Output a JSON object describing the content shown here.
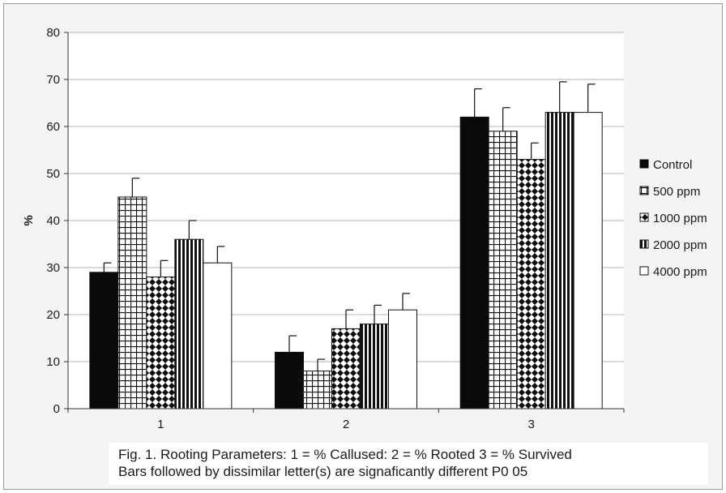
{
  "chart_data": {
    "type": "bar",
    "categories": [
      "1",
      "2",
      "3"
    ],
    "ylabel": "%",
    "ylim": [
      0,
      80
    ],
    "yticks": [
      0,
      10,
      20,
      30,
      40,
      50,
      60,
      70,
      80
    ],
    "grid": true,
    "legend_position": "right",
    "series": [
      {
        "name": "Control",
        "values": [
          29,
          12,
          62
        ],
        "errors": [
          2,
          3.5,
          6
        ],
        "pattern": "solid"
      },
      {
        "name": "500 ppm",
        "values": [
          45,
          8,
          59
        ],
        "errors": [
          4,
          2.5,
          5
        ],
        "pattern": "grid"
      },
      {
        "name": "1000 ppm",
        "values": [
          28,
          17,
          53
        ],
        "errors": [
          3.5,
          4,
          3.5
        ],
        "pattern": "diamonds"
      },
      {
        "name": "2000 ppm",
        "values": [
          36,
          18,
          63
        ],
        "errors": [
          4,
          4,
          6.5
        ],
        "pattern": "vstripes"
      },
      {
        "name": "4000 ppm",
        "values": [
          31,
          21,
          63
        ],
        "errors": [
          3.5,
          3.5,
          6
        ],
        "pattern": "white"
      }
    ]
  },
  "caption": {
    "line1": "Fig. 1. Rooting Parameters: 1 = % Callused: 2 = % Rooted 3 = % Survived",
    "line2": "Bars followed by dissimilar letter(s) are signaficantly different P0   05"
  }
}
